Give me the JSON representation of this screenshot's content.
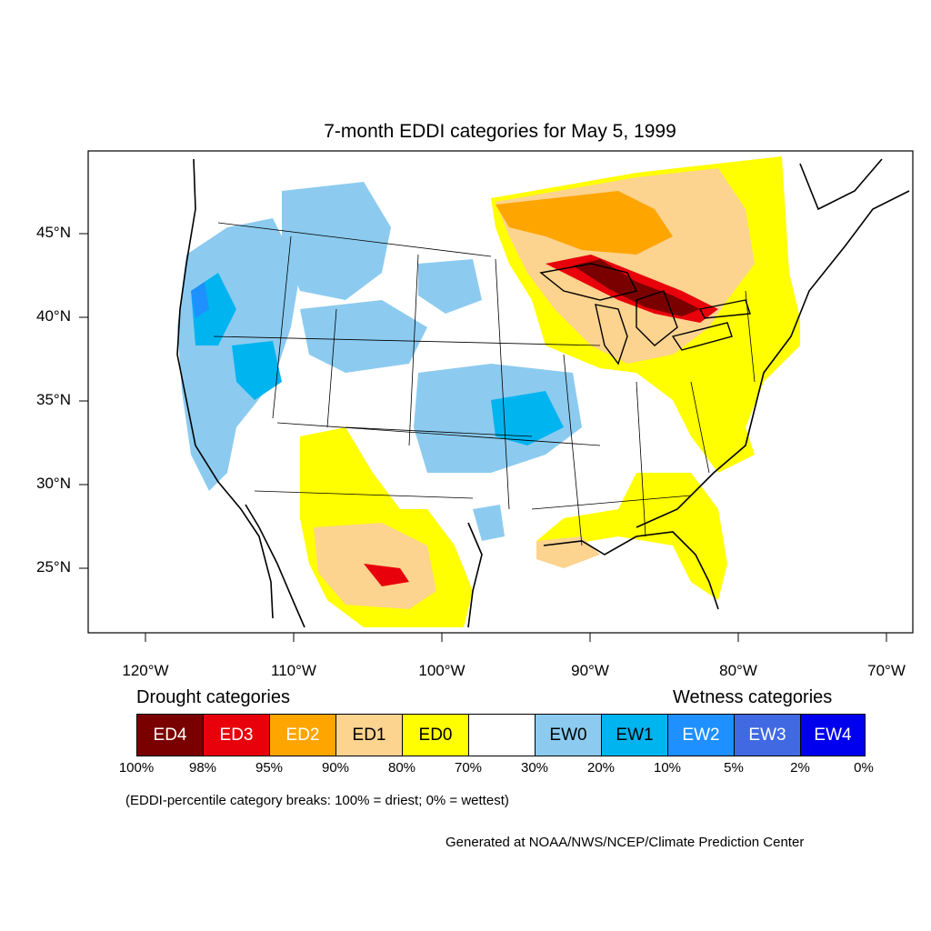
{
  "title": "7-month EDDI categories for May 5, 1999",
  "lat_labels": [
    "45°N",
    "40°N",
    "35°N",
    "30°N",
    "25°N"
  ],
  "lon_labels": [
    "120°W",
    "110°W",
    "100°W",
    "90°W",
    "80°W",
    "70°W"
  ],
  "legend": {
    "drought_heading": "Drought categories",
    "wetness_heading": "Wetness categories",
    "categories": [
      {
        "label": "ED4",
        "color": "#7a0000",
        "text_color": "#ffffff"
      },
      {
        "label": "ED3",
        "color": "#e8000b",
        "text_color": "#ffffff"
      },
      {
        "label": "ED2",
        "color": "#ffa500",
        "text_color": "#ffffff"
      },
      {
        "label": "ED1",
        "color": "#fcd38f",
        "text_color": "#000000"
      },
      {
        "label": "ED0",
        "color": "#ffff00",
        "text_color": "#000000"
      },
      {
        "label": "",
        "color": "#ffffff",
        "text_color": "#000000"
      },
      {
        "label": "EW0",
        "color": "#8ccbef",
        "text_color": "#000000"
      },
      {
        "label": "EW1",
        "color": "#00b4f0",
        "text_color": "#000000"
      },
      {
        "label": "EW2",
        "color": "#1e90ff",
        "text_color": "#ffffff"
      },
      {
        "label": "EW3",
        "color": "#4169e1",
        "text_color": "#ffffff"
      },
      {
        "label": "EW4",
        "color": "#0000ee",
        "text_color": "#ffffff"
      }
    ],
    "breaks": [
      "100%",
      "98%",
      "95%",
      "90%",
      "80%",
      "70%",
      "30%",
      "20%",
      "10%",
      "5%",
      "2%",
      "0%"
    ]
  },
  "note": "(EDDI-percentile category breaks: 100% = driest; 0% = wettest)",
  "credit": "Generated at NOAA/NWS/NCEP/Climate Prediction Center"
}
